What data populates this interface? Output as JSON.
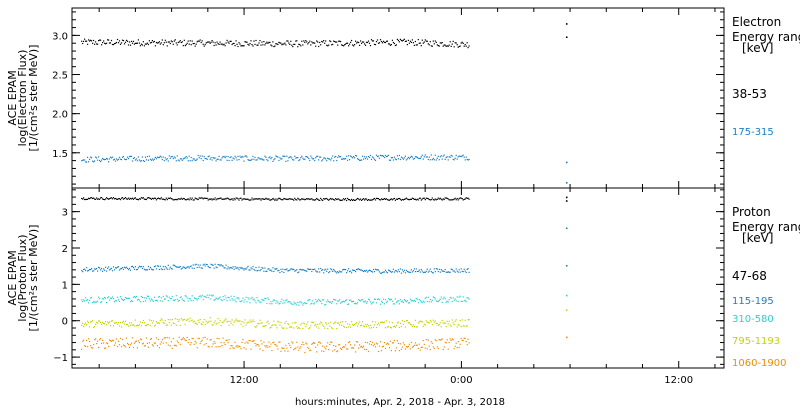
{
  "chart_data": {
    "type": "scatter",
    "xlabel": "hours:minutes, Apr.  2, 2018 - Apr.  3, 2018",
    "x_ticks": [
      {
        "label": "12:00",
        "hours": 12
      },
      {
        "label": "0:00",
        "hours": 24
      },
      {
        "label": "12:00",
        "hours": 36
      }
    ],
    "xlim_hours": [
      2.5,
      38.5
    ],
    "panels": [
      {
        "id": "electron",
        "ylabel_lines": [
          "ACE EPAM",
          "log(Electron Flux)",
          "[1/(cm²s ster MeV)]"
        ],
        "ylim": [
          1.05,
          3.35
        ],
        "y_ticks": [
          1.5,
          2.0,
          2.5,
          3.0
        ],
        "y_tick_labels": [
          "1.5",
          "2.0",
          "2.5",
          "3.0"
        ],
        "legend_title": [
          "Electron",
          "Energy ranges",
          "[keV]"
        ],
        "series": [
          {
            "name": "38-53",
            "color": "#000000",
            "data": [
              [
                3.0,
                2.92
              ],
              [
                9.0,
                2.91
              ],
              [
                15.0,
                2.9
              ],
              [
                21.0,
                2.92
              ],
              [
                24.4,
                2.89
              ]
            ],
            "jitter": 0.04,
            "extra_points": [
              [
                29.8,
                3.15
              ],
              [
                29.8,
                2.98
              ]
            ]
          },
          {
            "name": "175-315",
            "color": "#1a80c4",
            "data": [
              [
                3.0,
                1.42
              ],
              [
                9.0,
                1.44
              ],
              [
                15.0,
                1.43
              ],
              [
                21.0,
                1.45
              ],
              [
                24.4,
                1.45
              ]
            ],
            "jitter": 0.035,
            "extra_points": [
              [
                29.8,
                1.38
              ],
              [
                29.8,
                1.12
              ]
            ]
          }
        ]
      },
      {
        "id": "proton",
        "ylabel_lines": [
          "ACE EPAM",
          "log(Proton Flux)",
          "[1/(cm²s ster MeV)]"
        ],
        "ylim": [
          -1.3,
          3.65
        ],
        "y_ticks": [
          -1,
          0,
          1,
          2,
          3
        ],
        "y_tick_labels": [
          "−1",
          "0",
          "1",
          "2",
          "3"
        ],
        "legend_title": [
          "Proton",
          "Energy ranges",
          "[keV]"
        ],
        "series": [
          {
            "name": "47-68",
            "color": "#000000",
            "data": [
              [
                3.0,
                3.38
              ],
              [
                12.0,
                3.36
              ],
              [
                19.0,
                3.35
              ],
              [
                24.4,
                3.37
              ]
            ],
            "jitter": 0.03,
            "extra_points": [
              [
                29.8,
                3.4
              ],
              [
                29.8,
                3.3
              ]
            ]
          },
          {
            "name": "115-195",
            "color": "#1a80c4",
            "data": [
              [
                3.0,
                1.42
              ],
              [
                10.0,
                1.52
              ],
              [
                14.0,
                1.4
              ],
              [
                20.0,
                1.38
              ],
              [
                24.4,
                1.4
              ]
            ],
            "jitter": 0.06,
            "extra_points": [
              [
                29.8,
                2.55
              ],
              [
                29.8,
                1.52
              ]
            ]
          },
          {
            "name": "310-580",
            "color": "#28d2d2",
            "data": [
              [
                3.0,
                0.58
              ],
              [
                10.0,
                0.65
              ],
              [
                15.0,
                0.52
              ],
              [
                20.0,
                0.55
              ],
              [
                24.4,
                0.62
              ]
            ],
            "jitter": 0.08,
            "extra_points": [
              [
                29.8,
                0.7
              ]
            ]
          },
          {
            "name": "795-1193",
            "color": "#c8d200",
            "data": [
              [
                3.0,
                -0.08
              ],
              [
                10.0,
                0.0
              ],
              [
                15.0,
                -0.12
              ],
              [
                20.0,
                -0.08
              ],
              [
                24.4,
                -0.05
              ]
            ],
            "jitter": 0.1,
            "extra_points": [
              [
                29.8,
                0.3
              ]
            ]
          },
          {
            "name": "1060-1900",
            "color": "#f08c00",
            "data": [
              [
                3.0,
                -0.62
              ],
              [
                10.0,
                -0.58
              ],
              [
                15.0,
                -0.72
              ],
              [
                20.0,
                -0.68
              ],
              [
                24.4,
                -0.6
              ]
            ],
            "jitter": 0.15,
            "extra_points": [
              [
                29.8,
                -0.45
              ]
            ]
          }
        ]
      }
    ]
  }
}
